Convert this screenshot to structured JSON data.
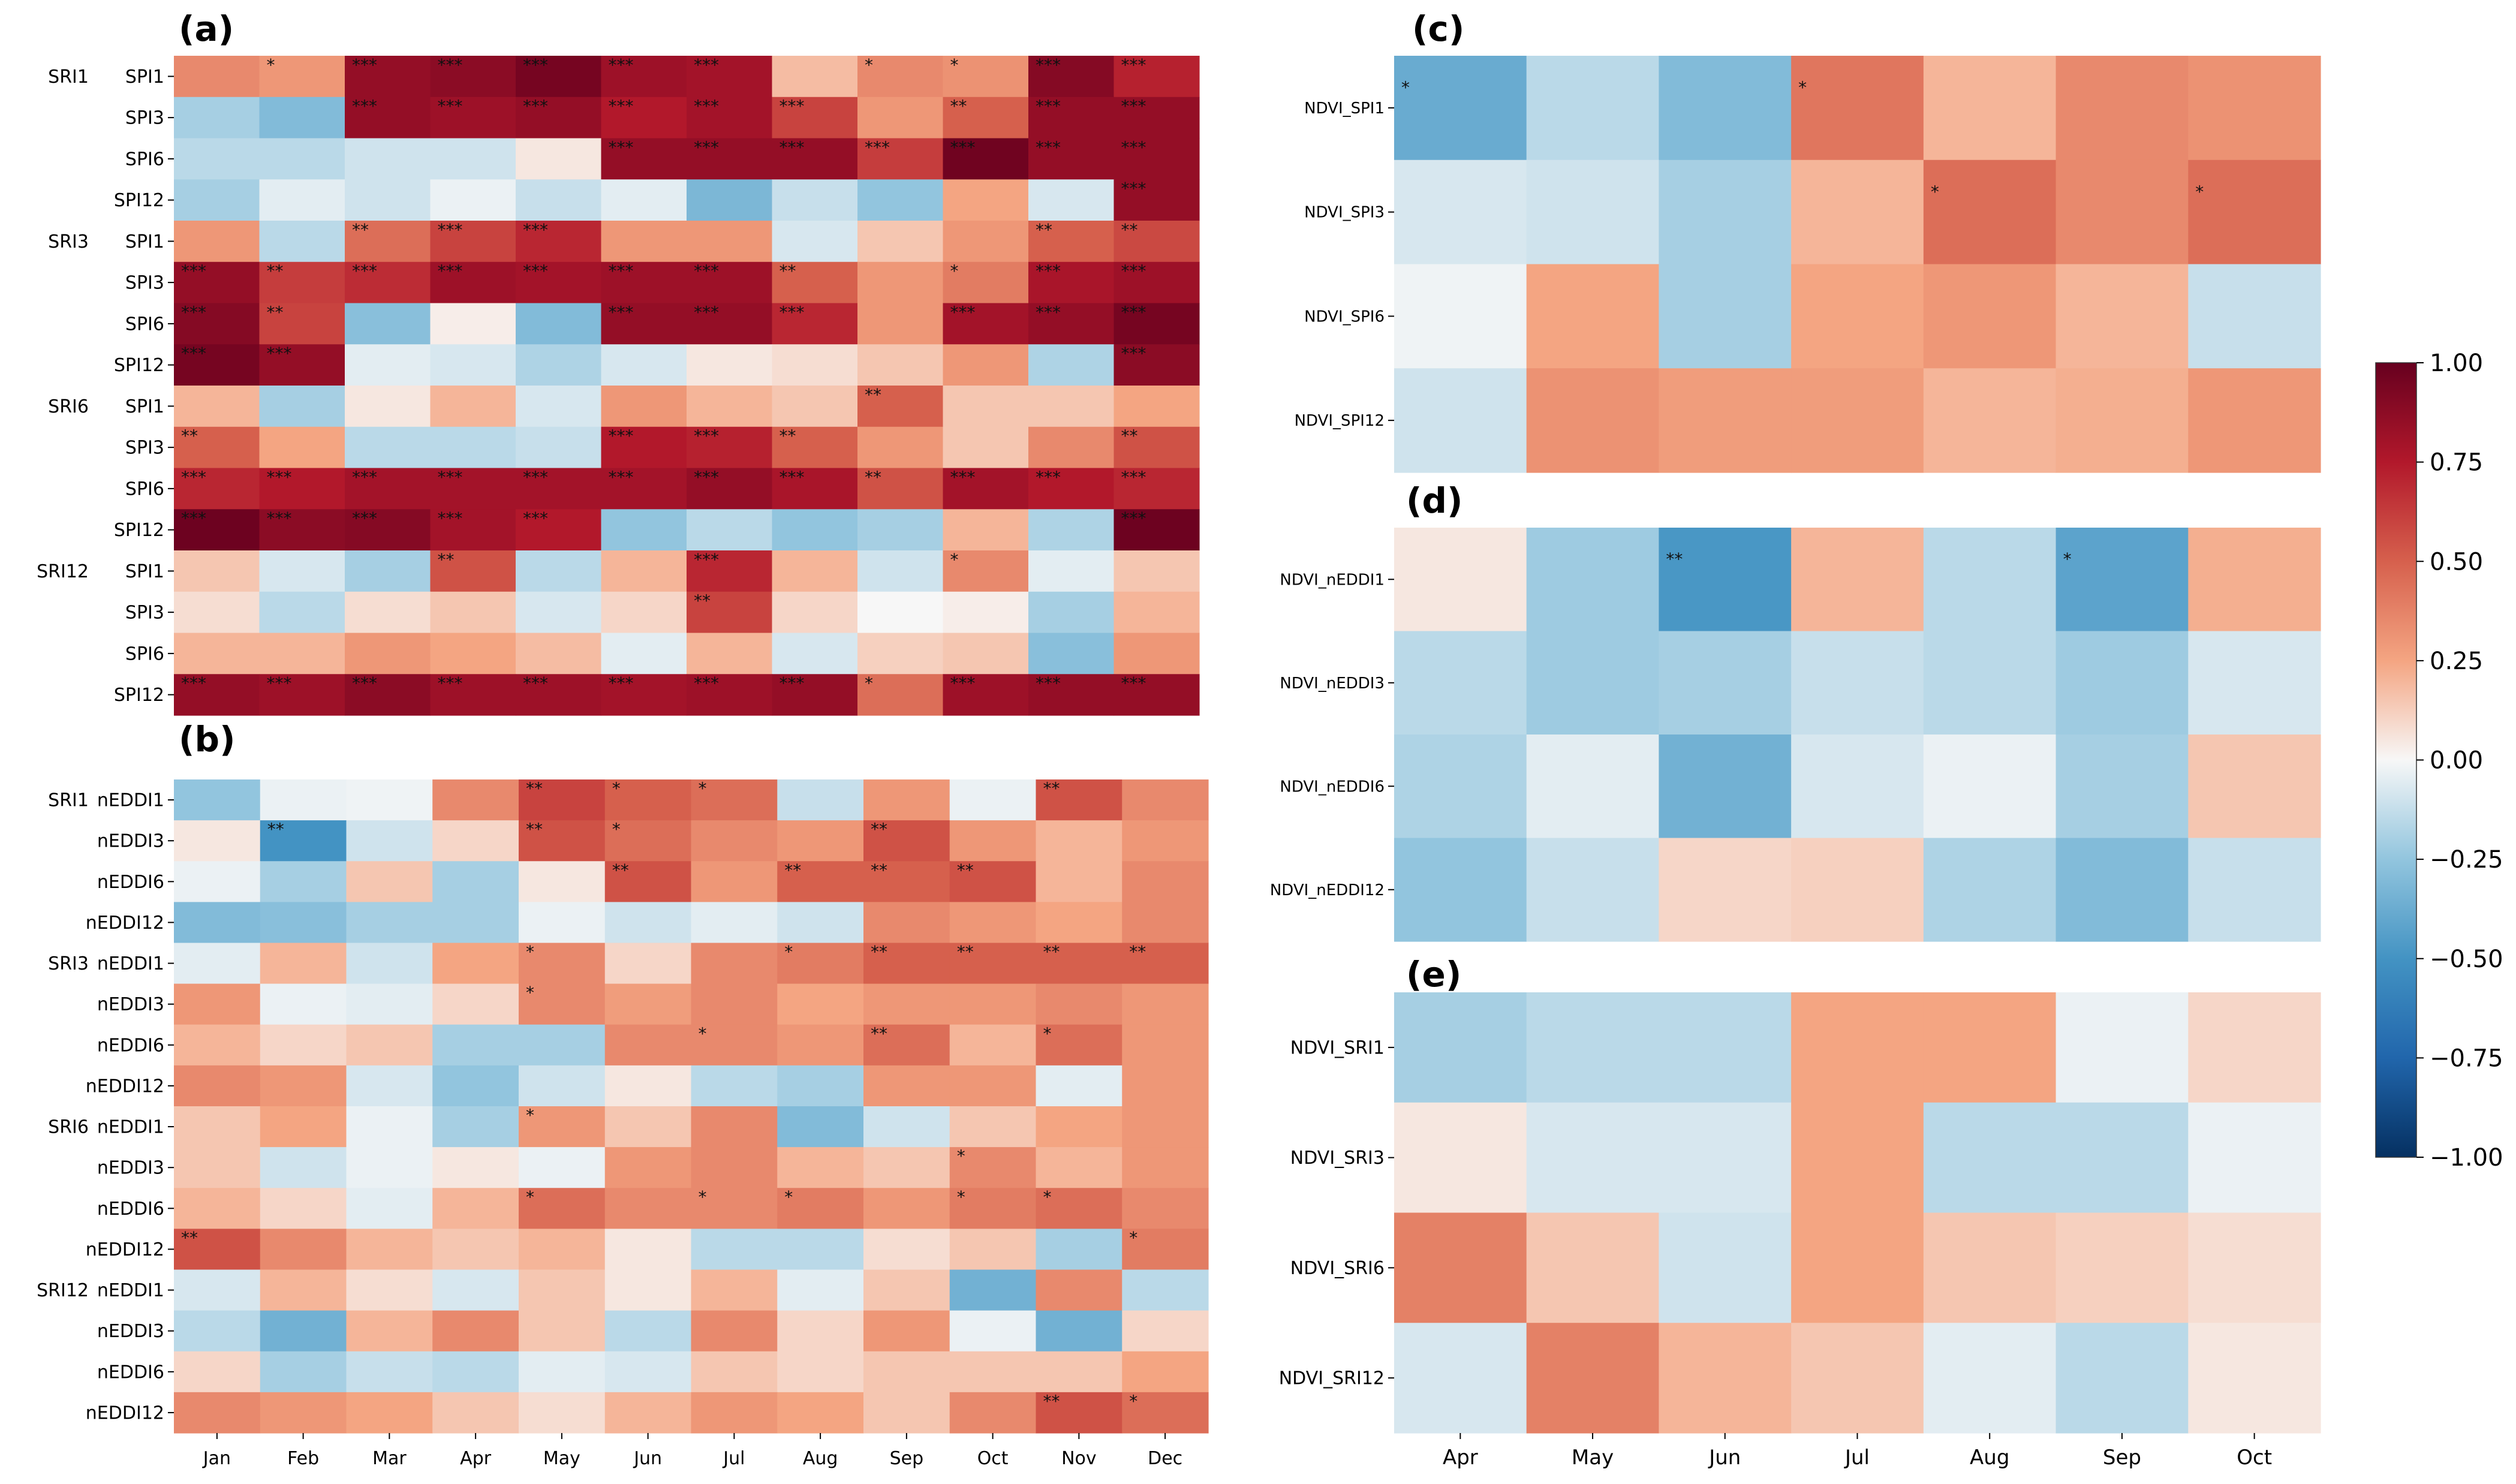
{
  "colorbar": {
    "min": -1.0,
    "max": 1.0,
    "ticks": [
      "1.00",
      "0.75",
      "0.50",
      "0.25",
      "0.00",
      "−0.25",
      "−0.50",
      "−0.75",
      "−1.00"
    ],
    "colors": {
      "neg_dark": "#053061",
      "neg_mid": "#4393c3",
      "neutral": "#f7f7f7",
      "pos_mid": "#f4a582",
      "pos_dark": "#67001f"
    }
  },
  "chart_data": [
    {
      "panel": "(a)",
      "type": "heatmap",
      "xlabels": [
        "Jan",
        "Feb",
        "Mar",
        "Apr",
        "May",
        "Jun",
        "Jul",
        "Aug",
        "Sep",
        "Oct",
        "Nov",
        "Dec"
      ],
      "groups": [
        "SRI1",
        "SRI3",
        "SRI6",
        "SRI12"
      ],
      "rowlabels": [
        "SPI1",
        "SPI3",
        "SPI6",
        "SPI12",
        "SPI1",
        "SPI3",
        "SPI6",
        "SPI12",
        "SPI1",
        "SPI3",
        "SPI6",
        "SPI12",
        "SPI1",
        "SPI3",
        "SPI6",
        "SPI12"
      ],
      "values": [
        [
          0.35,
          0.3,
          0.85,
          0.88,
          0.95,
          0.82,
          0.8,
          0.18,
          0.35,
          0.32,
          0.9,
          0.72
        ],
        [
          -0.2,
          -0.3,
          0.85,
          0.82,
          0.85,
          0.75,
          0.8,
          0.6,
          0.3,
          0.5,
          0.85,
          0.85
        ],
        [
          -0.15,
          -0.15,
          -0.1,
          -0.1,
          0.05,
          0.85,
          0.85,
          0.85,
          0.62,
          0.97,
          0.85,
          0.85
        ],
        [
          -0.2,
          -0.05,
          -0.1,
          -0.03,
          -0.12,
          -0.05,
          -0.32,
          -0.12,
          -0.25,
          0.25,
          -0.08,
          0.85
        ],
        [
          0.3,
          -0.15,
          0.45,
          0.6,
          0.7,
          0.3,
          0.3,
          -0.08,
          0.15,
          0.3,
          0.5,
          0.58
        ],
        [
          0.85,
          0.62,
          0.68,
          0.82,
          0.8,
          0.82,
          0.82,
          0.5,
          0.3,
          0.4,
          0.78,
          0.82
        ],
        [
          0.9,
          0.6,
          -0.28,
          0.03,
          -0.3,
          0.85,
          0.85,
          0.7,
          0.3,
          0.8,
          0.85,
          0.95
        ],
        [
          0.95,
          0.85,
          -0.05,
          -0.08,
          -0.18,
          -0.08,
          0.05,
          0.08,
          0.15,
          0.3,
          -0.18,
          0.88
        ],
        [
          0.2,
          -0.2,
          0.05,
          0.2,
          -0.08,
          0.3,
          0.2,
          0.15,
          0.5,
          0.15,
          0.15,
          0.25
        ],
        [
          0.5,
          0.25,
          -0.15,
          -0.15,
          -0.12,
          0.75,
          0.72,
          0.5,
          0.3,
          0.15,
          0.35,
          0.55
        ],
        [
          0.7,
          0.75,
          0.8,
          0.8,
          0.8,
          0.8,
          0.85,
          0.78,
          0.55,
          0.8,
          0.75,
          0.7
        ],
        [
          0.98,
          0.88,
          0.9,
          0.8,
          0.75,
          -0.25,
          -0.15,
          -0.25,
          -0.2,
          0.2,
          -0.18,
          0.98
        ],
        [
          0.15,
          -0.08,
          -0.2,
          0.55,
          -0.15,
          0.2,
          0.7,
          0.2,
          -0.1,
          0.35,
          -0.05,
          0.15
        ],
        [
          0.08,
          -0.15,
          0.08,
          0.15,
          -0.08,
          0.1,
          0.6,
          0.1,
          0.0,
          0.03,
          -0.2,
          0.2
        ],
        [
          0.2,
          0.2,
          0.3,
          0.25,
          0.18,
          -0.05,
          0.2,
          -0.08,
          0.12,
          0.15,
          -0.28,
          0.3
        ],
        [
          0.85,
          0.82,
          0.88,
          0.82,
          0.82,
          0.8,
          0.82,
          0.85,
          0.45,
          0.82,
          0.85,
          0.85
        ]
      ],
      "stars": [
        [
          "",
          "*",
          "***",
          "***",
          "***",
          "***",
          "***",
          "",
          "*",
          "*",
          "***",
          "***"
        ],
        [
          "",
          "",
          "***",
          "***",
          "***",
          "***",
          "***",
          "***",
          "",
          "**",
          "***",
          "***"
        ],
        [
          "",
          "",
          "",
          "",
          "",
          "***",
          "***",
          "***",
          "***",
          "***",
          "***",
          "***"
        ],
        [
          "",
          "",
          "",
          "",
          "",
          "",
          "",
          "",
          "",
          "",
          "",
          "***"
        ],
        [
          "",
          "",
          "**",
          "***",
          "***",
          "",
          "",
          "",
          "",
          "",
          "**",
          "**"
        ],
        [
          "***",
          "**",
          "***",
          "***",
          "***",
          "***",
          "***",
          "**",
          "",
          "*",
          "***",
          "***"
        ],
        [
          "***",
          "**",
          "",
          "",
          "",
          "***",
          "***",
          "***",
          "",
          "***",
          "***",
          "***"
        ],
        [
          "***",
          "***",
          "",
          "",
          "",
          "",
          "",
          "",
          "",
          "",
          "",
          "***"
        ],
        [
          "",
          "",
          "",
          "",
          "",
          "",
          "",
          "",
          "**",
          "",
          "",
          ""
        ],
        [
          "**",
          "",
          "",
          "",
          "",
          "***",
          "***",
          "**",
          "",
          "",
          "",
          "**"
        ],
        [
          "***",
          "***",
          "***",
          "***",
          "***",
          "***",
          "***",
          "***",
          "**",
          "***",
          "***",
          "***"
        ],
        [
          "***",
          "***",
          "***",
          "***",
          "***",
          "",
          "",
          "",
          "",
          "",
          "",
          "***"
        ],
        [
          "",
          "",
          "",
          "**",
          "",
          "",
          "***",
          "",
          "",
          "*",
          "",
          ""
        ],
        [
          "",
          "",
          "",
          "",
          "",
          "",
          "**",
          "",
          "",
          "",
          "",
          ""
        ],
        [
          "",
          "",
          "",
          "",
          "",
          "",
          "",
          "",
          "",
          "",
          "",
          ""
        ],
        [
          "***",
          "***",
          "***",
          "***",
          "***",
          "***",
          "***",
          "***",
          "*",
          "***",
          "***",
          "***"
        ]
      ]
    },
    {
      "panel": "(b)",
      "type": "heatmap",
      "xlabels": [
        "Jan",
        "Feb",
        "Mar",
        "Apr",
        "May",
        "Jun",
        "Jul",
        "Aug",
        "Sep",
        "Oct",
        "Nov",
        "Dec"
      ],
      "groups": [
        "SRI1",
        "SRI3",
        "SRI6",
        "SRI12"
      ],
      "rowlabels": [
        "nEDDI1",
        "nEDDI3",
        "nEDDI6",
        "nEDDI12",
        "nEDDI1",
        "nEDDI3",
        "nEDDI6",
        "nEDDI12",
        "nEDDI1",
        "nEDDI3",
        "nEDDI6",
        "nEDDI12",
        "nEDDI1",
        "nEDDI3",
        "nEDDI6",
        "nEDDI12"
      ],
      "values": [
        [
          -0.25,
          -0.03,
          -0.02,
          0.35,
          0.6,
          0.5,
          0.45,
          -0.12,
          0.3,
          -0.03,
          0.55,
          0.35
        ],
        [
          0.05,
          -0.5,
          -0.1,
          0.1,
          0.55,
          0.45,
          0.35,
          0.3,
          0.55,
          0.3,
          0.2,
          0.3
        ],
        [
          -0.03,
          -0.2,
          0.15,
          -0.2,
          0.05,
          0.55,
          0.3,
          0.5,
          0.5,
          0.55,
          0.2,
          0.35
        ],
        [
          -0.3,
          -0.28,
          -0.2,
          -0.2,
          -0.03,
          -0.1,
          -0.05,
          -0.1,
          0.35,
          0.3,
          0.25,
          0.35
        ],
        [
          -0.05,
          0.2,
          -0.1,
          0.25,
          0.35,
          0.1,
          0.35,
          0.4,
          0.5,
          0.5,
          0.5,
          0.5
        ],
        [
          0.3,
          -0.03,
          -0.05,
          0.1,
          0.35,
          0.28,
          0.35,
          0.25,
          0.3,
          0.3,
          0.35,
          0.3
        ],
        [
          0.2,
          0.1,
          0.15,
          -0.2,
          -0.2,
          0.35,
          0.35,
          0.3,
          0.45,
          0.2,
          0.45,
          0.3
        ],
        [
          0.35,
          0.3,
          -0.08,
          -0.25,
          -0.1,
          0.05,
          -0.15,
          -0.2,
          0.3,
          0.3,
          -0.05,
          0.3
        ],
        [
          0.15,
          0.25,
          -0.03,
          -0.2,
          0.3,
          0.15,
          0.35,
          -0.3,
          -0.1,
          0.15,
          0.25,
          0.3
        ],
        [
          0.15,
          -0.1,
          -0.03,
          0.05,
          -0.03,
          0.3,
          0.35,
          0.2,
          0.15,
          0.35,
          0.2,
          0.3
        ],
        [
          0.2,
          0.1,
          -0.05,
          0.2,
          0.45,
          0.35,
          0.35,
          0.4,
          0.3,
          0.4,
          0.45,
          0.35
        ],
        [
          0.55,
          0.35,
          0.2,
          0.15,
          0.2,
          0.05,
          -0.15,
          -0.15,
          0.08,
          0.15,
          -0.2,
          0.4
        ],
        [
          -0.08,
          0.2,
          0.08,
          -0.08,
          0.15,
          0.05,
          0.2,
          -0.05,
          0.15,
          -0.35,
          0.35,
          -0.15
        ],
        [
          -0.15,
          -0.35,
          0.2,
          0.35,
          0.15,
          -0.15,
          0.35,
          0.1,
          0.3,
          -0.03,
          -0.35,
          0.1
        ],
        [
          0.1,
          -0.2,
          -0.12,
          -0.15,
          -0.05,
          -0.08,
          0.15,
          0.1,
          0.15,
          0.15,
          0.15,
          0.25
        ],
        [
          0.35,
          0.3,
          0.25,
          0.15,
          0.08,
          0.2,
          0.3,
          0.25,
          0.15,
          0.35,
          0.55,
          0.45
        ]
      ],
      "stars": [
        [
          "",
          "",
          "",
          "",
          "**",
          "*",
          "*",
          "",
          "",
          "",
          "**",
          ""
        ],
        [
          "",
          "**",
          "",
          "",
          "**",
          "*",
          "",
          "",
          "**",
          "",
          "",
          ""
        ],
        [
          "",
          "",
          "",
          "",
          "",
          "**",
          "",
          "**",
          "**",
          "**",
          "",
          ""
        ],
        [
          "",
          "",
          "",
          "",
          "",
          "",
          "",
          "",
          "",
          "",
          "",
          ""
        ],
        [
          "",
          "",
          "",
          "",
          "*",
          "",
          "",
          "*",
          "**",
          "**",
          "**",
          "**"
        ],
        [
          "",
          "",
          "",
          "",
          "*",
          "",
          "",
          "",
          "",
          "",
          "",
          ""
        ],
        [
          "",
          "",
          "",
          "",
          "",
          "",
          "*",
          "",
          "**",
          "",
          "*",
          ""
        ],
        [
          "",
          "",
          "",
          "",
          "",
          "",
          "",
          "",
          "",
          "",
          "",
          ""
        ],
        [
          "",
          "",
          "",
          "",
          "*",
          "",
          "",
          "",
          "",
          "",
          "",
          ""
        ],
        [
          "",
          "",
          "",
          "",
          "",
          "",
          "",
          "",
          "",
          "*",
          "",
          ""
        ],
        [
          "",
          "",
          "",
          "",
          "*",
          "",
          "*",
          "*",
          "",
          "*",
          "*",
          ""
        ],
        [
          "**",
          "",
          "",
          "",
          "",
          "",
          "",
          "",
          "",
          "",
          "",
          "*"
        ],
        [
          "",
          "",
          "",
          "",
          "",
          "",
          "",
          "",
          "",
          "",
          "",
          ""
        ],
        [
          "",
          "",
          "",
          "",
          "",
          "",
          "",
          "",
          "",
          "",
          "",
          ""
        ],
        [
          "",
          "",
          "",
          "",
          "",
          "",
          "",
          "",
          "",
          "",
          "",
          ""
        ],
        [
          "",
          "",
          "",
          "",
          "",
          "",
          "",
          "",
          "",
          "",
          "**",
          "*"
        ]
      ]
    },
    {
      "panel": "(c)",
      "type": "heatmap",
      "xlabels": [
        "Apr",
        "May",
        "Jun",
        "Jul",
        "Aug",
        "Sep",
        "Oct"
      ],
      "rowlabels": [
        "NDVI_SPI1",
        "NDVI_SPI3",
        "NDVI_SPI6",
        "NDVI_SPI12"
      ],
      "values": [
        [
          -0.38,
          -0.15,
          -0.3,
          0.42,
          0.2,
          0.35,
          0.32
        ],
        [
          -0.08,
          -0.1,
          -0.2,
          0.2,
          0.45,
          0.35,
          0.45
        ],
        [
          -0.02,
          0.25,
          -0.2,
          0.25,
          0.3,
          0.2,
          -0.12
        ],
        [
          -0.1,
          0.32,
          0.28,
          0.28,
          0.2,
          0.22,
          0.3
        ]
      ],
      "stars": [
        [
          "*",
          "",
          "",
          "*",
          "",
          "",
          ""
        ],
        [
          "",
          "",
          "",
          "",
          "*",
          "",
          "*"
        ],
        [
          "",
          "",
          "",
          "",
          "",
          "",
          ""
        ],
        [
          "",
          "",
          "",
          "",
          "",
          "",
          ""
        ]
      ]
    },
    {
      "panel": "(d)",
      "type": "heatmap",
      "xlabels": [
        "Apr",
        "May",
        "Jun",
        "Jul",
        "Aug",
        "Sep",
        "Oct"
      ],
      "rowlabels": [
        "NDVI_nEDDI1",
        "NDVI_nEDDI3",
        "NDVI_nEDDI6",
        "NDVI_nEDDI12"
      ],
      "values": [
        [
          0.05,
          -0.22,
          -0.48,
          0.2,
          -0.15,
          -0.42,
          0.22
        ],
        [
          -0.15,
          -0.22,
          -0.2,
          -0.12,
          -0.15,
          -0.22,
          -0.08
        ],
        [
          -0.18,
          -0.05,
          -0.35,
          -0.08,
          -0.03,
          -0.2,
          0.15
        ],
        [
          -0.25,
          -0.12,
          0.1,
          0.12,
          -0.18,
          -0.3,
          -0.12
        ]
      ],
      "stars": [
        [
          "",
          "",
          "**",
          "",
          "",
          "*",
          ""
        ],
        [
          "",
          "",
          "",
          "",
          "",
          "",
          ""
        ],
        [
          "",
          "",
          "",
          "",
          "",
          "",
          ""
        ],
        [
          "",
          "",
          "",
          "",
          "",
          "",
          ""
        ]
      ]
    },
    {
      "panel": "(e)",
      "type": "heatmap",
      "xlabels": [
        "Apr",
        "May",
        "Jun",
        "Jul",
        "Aug",
        "Sep",
        "Oct"
      ],
      "rowlabels": [
        "NDVI_SRI1",
        "NDVI_SRI3",
        "NDVI_SRI6",
        "NDVI_SRI12"
      ],
      "values": [
        [
          -0.2,
          -0.15,
          -0.15,
          0.25,
          0.25,
          -0.03,
          0.1
        ],
        [
          0.05,
          -0.08,
          -0.08,
          0.25,
          -0.15,
          -0.15,
          -0.03
        ],
        [
          0.38,
          0.15,
          -0.1,
          0.25,
          0.15,
          0.12,
          0.08
        ],
        [
          -0.08,
          0.38,
          0.2,
          0.15,
          -0.05,
          -0.15,
          0.05
        ]
      ],
      "stars": [
        [
          "",
          "",
          "",
          "",
          "",
          "",
          ""
        ],
        [
          "",
          "",
          "",
          "",
          "",
          "",
          ""
        ],
        [
          "",
          "",
          "",
          "",
          "",
          "",
          ""
        ],
        [
          "",
          "",
          "",
          "",
          "",
          "",
          ""
        ]
      ]
    }
  ]
}
